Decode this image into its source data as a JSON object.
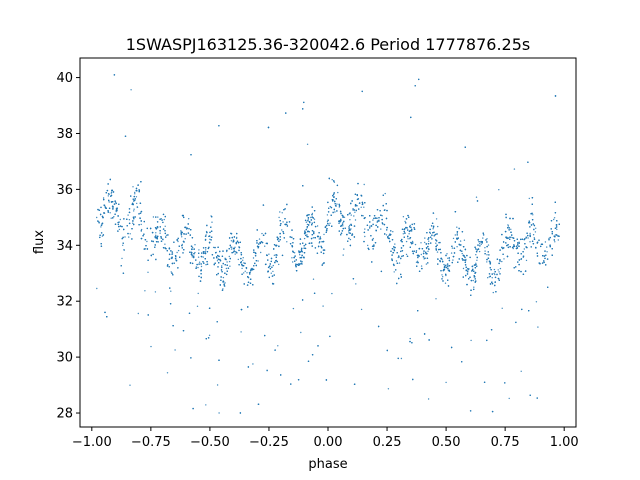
{
  "chart_data": {
    "type": "scatter",
    "title": "1SWASPJ163125.36-320042.6 Period 1777876.25s",
    "xlabel": "phase",
    "ylabel": "flux",
    "xlim": [
      -1.05,
      1.05
    ],
    "ylim": [
      27.5,
      40.7
    ],
    "xticks": [
      -1.0,
      -0.75,
      -0.5,
      -0.25,
      0.0,
      0.25,
      0.5,
      0.75,
      1.0
    ],
    "xtick_labels": [
      "−1.00",
      "−0.75",
      "−0.50",
      "−0.25",
      "0.00",
      "0.25",
      "0.50",
      "0.75",
      "1.00"
    ],
    "yticks": [
      28,
      30,
      32,
      34,
      36,
      38,
      40
    ],
    "ytick_labels": [
      "28",
      "30",
      "32",
      "34",
      "36",
      "38",
      "40"
    ],
    "grid": false,
    "legend": "none",
    "point_color": "#1f77b4",
    "x_range": [
      -0.98,
      0.98
    ],
    "profile": [
      {
        "phase": -0.98,
        "flux": 35.4,
        "spread": 1.1
      },
      {
        "phase": -0.9,
        "flux": 35.0,
        "spread": 1.0
      },
      {
        "phase": -0.8,
        "flux": 34.9,
        "spread": 1.1
      },
      {
        "phase": -0.72,
        "flux": 34.0,
        "spread": 1.0
      },
      {
        "phase": -0.62,
        "flux": 34.0,
        "spread": 0.9
      },
      {
        "phase": -0.5,
        "flux": 33.7,
        "spread": 0.9
      },
      {
        "phase": -0.42,
        "flux": 33.5,
        "spread": 0.9
      },
      {
        "phase": -0.3,
        "flux": 33.4,
        "spread": 0.7
      },
      {
        "phase": -0.2,
        "flux": 34.2,
        "spread": 1.0
      },
      {
        "phase": -0.1,
        "flux": 34.0,
        "spread": 0.8
      },
      {
        "phase": 0.02,
        "flux": 35.1,
        "spread": 1.0
      },
      {
        "phase": 0.1,
        "flux": 35.0,
        "spread": 1.0
      },
      {
        "phase": 0.2,
        "flux": 34.9,
        "spread": 1.1
      },
      {
        "phase": 0.28,
        "flux": 34.0,
        "spread": 1.0
      },
      {
        "phase": 0.38,
        "flux": 34.0,
        "spread": 0.9
      },
      {
        "phase": 0.5,
        "flux": 33.7,
        "spread": 0.9
      },
      {
        "phase": 0.58,
        "flux": 33.5,
        "spread": 0.9
      },
      {
        "phase": 0.7,
        "flux": 33.4,
        "spread": 0.7
      },
      {
        "phase": 0.8,
        "flux": 34.2,
        "spread": 1.0
      },
      {
        "phase": 0.9,
        "flux": 34.0,
        "spread": 0.8
      },
      {
        "phase": 0.98,
        "flux": 34.2,
        "spread": 0.9
      }
    ]
  }
}
